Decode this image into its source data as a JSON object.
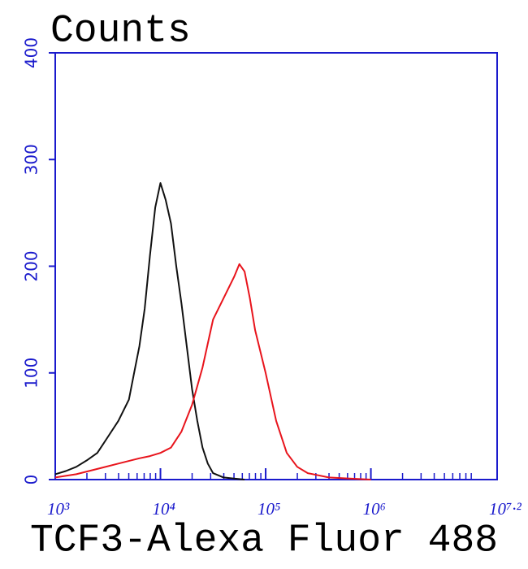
{
  "chart_data": {
    "type": "line",
    "title": "Counts",
    "x_label": "TCF3-Alexa Fluor 488",
    "xscale": "log",
    "xlim": [
      1000,
      15848932
    ],
    "ylim": [
      0,
      400
    ],
    "xticks": [
      {
        "value": 1000,
        "label": "10³"
      },
      {
        "value": 10000,
        "label": "10⁴"
      },
      {
        "value": 100000,
        "label": "10⁵"
      },
      {
        "value": 1000000,
        "label": "10⁶"
      },
      {
        "value": 15848932,
        "label": "10⁷·²"
      }
    ],
    "xminorticks": [
      2000,
      3000,
      4000,
      5000,
      6000,
      7000,
      8000,
      9000,
      20000,
      30000,
      40000,
      50000,
      60000,
      70000,
      80000,
      90000,
      200000,
      300000,
      400000,
      500000,
      600000,
      700000,
      800000,
      900000,
      2000000,
      3000000,
      4000000,
      5000000,
      6000000,
      7000000,
      8000000,
      9000000
    ],
    "yticks": [
      0,
      100,
      200,
      300,
      400
    ],
    "axis_color": "#1a1acc",
    "series": [
      {
        "color": "#111111",
        "x": [
          1000,
          1259,
          1585,
          1995,
          2512,
          3162,
          3981,
          5012,
          5623,
          6310,
          7079,
          7943,
          8913,
          10000,
          11220,
          12589,
          14125,
          15849,
          17783,
          19953,
          22387,
          25119,
          28184,
          31623,
          39811,
          50119,
          63096
        ],
        "values": [
          5,
          8,
          12,
          18,
          25,
          40,
          55,
          75,
          100,
          125,
          160,
          210,
          255,
          278,
          262,
          240,
          200,
          165,
          125,
          85,
          55,
          30,
          15,
          6,
          2,
          1,
          0
        ]
      },
      {
        "color": "#e8141c",
        "x": [
          1000,
          1585,
          2512,
          3981,
          6310,
          7943,
          10000,
          12589,
          15849,
          19953,
          25119,
          31623,
          39811,
          50119,
          56234,
          63096,
          70795,
          79433,
          100000,
          125893,
          158489,
          199526,
          251189,
          398107,
          630957,
          1000000
        ],
        "values": [
          2,
          5,
          10,
          15,
          20,
          22,
          25,
          30,
          45,
          70,
          105,
          150,
          170,
          190,
          202,
          195,
          170,
          140,
          100,
          55,
          25,
          12,
          6,
          2,
          1,
          0
        ]
      }
    ]
  }
}
